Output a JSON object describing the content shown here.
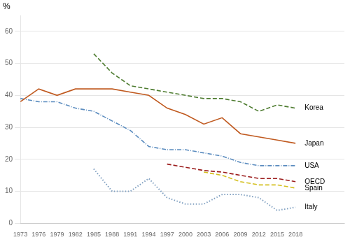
{
  "chart_data": {
    "type": "line",
    "ylabel": "%",
    "x": [
      1973,
      1976,
      1979,
      1982,
      1985,
      1988,
      1991,
      1994,
      1997,
      2000,
      2003,
      2006,
      2009,
      2012,
      2015,
      2018
    ],
    "series": [
      {
        "name": "Korea",
        "color": "#4e7c30",
        "line_style": "dashed",
        "values": [
          null,
          null,
          null,
          null,
          53,
          47,
          43,
          42,
          41,
          40,
          39,
          39,
          38,
          35,
          37,
          36
        ]
      },
      {
        "name": "Japan",
        "color": "#c05a20",
        "line_style": "solid",
        "values": [
          38,
          42,
          40,
          42,
          42,
          42,
          41,
          40,
          36,
          34,
          31,
          33,
          28,
          27,
          26,
          25
        ]
      },
      {
        "name": "USA",
        "color": "#5b8cbf",
        "line_style": "dashdot",
        "values": [
          39,
          38,
          38,
          36,
          35,
          32,
          29,
          24,
          23,
          23,
          22,
          21,
          19,
          18,
          18,
          18
        ]
      },
      {
        "name": "OECD",
        "color": "#9b1c1c",
        "line_style": "dashed",
        "values": [
          null,
          null,
          null,
          null,
          null,
          null,
          null,
          null,
          18.5,
          17.5,
          16.5,
          16,
          15,
          14,
          14,
          13
        ]
      },
      {
        "name": "Spain",
        "color": "#d4c020",
        "line_style": "dashed",
        "values": [
          null,
          null,
          null,
          null,
          null,
          null,
          null,
          null,
          null,
          null,
          16,
          15,
          13,
          12,
          12,
          11
        ]
      },
      {
        "name": "Italy",
        "color": "#7f9fc0",
        "line_style": "dotted",
        "values": [
          null,
          null,
          null,
          null,
          17,
          10,
          10,
          14,
          8,
          6,
          6,
          9,
          9,
          8,
          4,
          5
        ]
      }
    ],
    "xlim": [
      1973,
      2026
    ],
    "xticks": [
      1973,
      1976,
      1979,
      1982,
      1985,
      1988,
      1991,
      1994,
      1997,
      2000,
      2003,
      2006,
      2009,
      2012,
      2015,
      2018
    ],
    "ylim": [
      0,
      65
    ],
    "yticks": [
      0,
      10,
      20,
      30,
      40,
      50,
      60
    ],
    "grid": true,
    "annotations": [
      {
        "text": "Korea",
        "x": 2019.5,
        "y": 36
      },
      {
        "text": "Japan",
        "x": 2019.5,
        "y": 25
      },
      {
        "text": "USA",
        "x": 2019.5,
        "y": 18
      },
      {
        "text": "OECD",
        "x": 2019.5,
        "y": 13
      },
      {
        "text": "Spain",
        "x": 2019.5,
        "y": 11
      },
      {
        "text": "Italy",
        "x": 2019.5,
        "y": 5
      }
    ]
  }
}
